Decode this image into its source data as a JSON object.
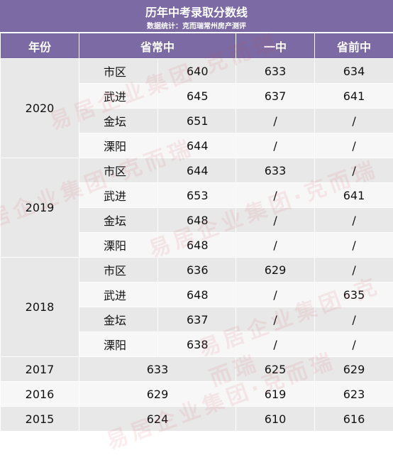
{
  "title": "历年中考录取分数线",
  "subtitle": "数据统计：克而瑞常州房产测评",
  "headers": {
    "year": "年份",
    "shengchang": "省常中",
    "yizhong": "一中",
    "shengqian": "省前中"
  },
  "years": [
    {
      "year": "2020",
      "rows": [
        {
          "district": "市区",
          "shengchang": "640",
          "yizhong": "633",
          "shengqian": "634"
        },
        {
          "district": "武进",
          "shengchang": "645",
          "yizhong": "637",
          "shengqian": "641"
        },
        {
          "district": "金坛",
          "shengchang": "651",
          "yizhong": "/",
          "shengqian": "/"
        },
        {
          "district": "溧阳",
          "shengchang": "644",
          "yizhong": "/",
          "shengqian": "/"
        }
      ]
    },
    {
      "year": "2019",
      "rows": [
        {
          "district": "市区",
          "shengchang": "644",
          "yizhong": "633",
          "shengqian": "/"
        },
        {
          "district": "武进",
          "shengchang": "653",
          "yizhong": "/",
          "shengqian": "641"
        },
        {
          "district": "金坛",
          "shengchang": "648",
          "yizhong": "/",
          "shengqian": "/"
        },
        {
          "district": "溧阳",
          "shengchang": "648",
          "yizhong": "/",
          "shengqian": "/"
        }
      ]
    },
    {
      "year": "2018",
      "rows": [
        {
          "district": "市区",
          "shengchang": "636",
          "yizhong": "629",
          "shengqian": "/"
        },
        {
          "district": "武进",
          "shengchang": "648",
          "yizhong": "/",
          "shengqian": "635"
        },
        {
          "district": "金坛",
          "shengchang": "637",
          "yizhong": "/",
          "shengqian": "/"
        },
        {
          "district": "溧阳",
          "shengchang": "638",
          "yizhong": "/",
          "shengqian": "/"
        }
      ]
    }
  ],
  "simple_years": [
    {
      "year": "2017",
      "shengchang": "633",
      "yizhong": "625",
      "shengqian": "629"
    },
    {
      "year": "2016",
      "shengchang": "629",
      "yizhong": "619",
      "shengqian": "623"
    },
    {
      "year": "2015",
      "shengchang": "624",
      "yizhong": "610",
      "shengqian": "616"
    }
  ],
  "watermark": "易居企业集团·克而瑞",
  "colors": {
    "header": "#7b6aa3",
    "row_gray": "#e8e8e8",
    "row_white": "#f7f7f7",
    "watermark": "#d75050"
  }
}
